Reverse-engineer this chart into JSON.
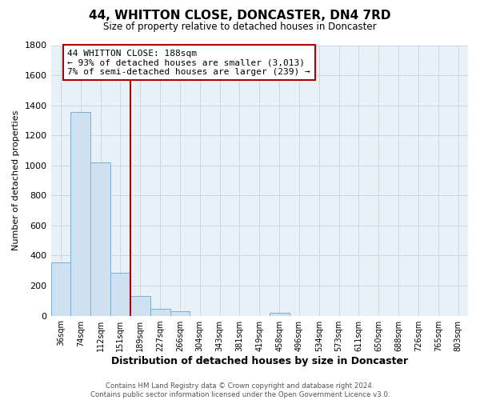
{
  "title": "44, WHITTON CLOSE, DONCASTER, DN4 7RD",
  "subtitle": "Size of property relative to detached houses in Doncaster",
  "xlabel": "Distribution of detached houses by size in Doncaster",
  "ylabel": "Number of detached properties",
  "bar_labels": [
    "36sqm",
    "74sqm",
    "112sqm",
    "151sqm",
    "189sqm",
    "227sqm",
    "266sqm",
    "304sqm",
    "343sqm",
    "381sqm",
    "419sqm",
    "458sqm",
    "496sqm",
    "534sqm",
    "573sqm",
    "611sqm",
    "650sqm",
    "688sqm",
    "726sqm",
    "765sqm",
    "803sqm"
  ],
  "bar_values": [
    355,
    1355,
    1020,
    285,
    130,
    45,
    32,
    0,
    0,
    0,
    0,
    18,
    0,
    0,
    0,
    0,
    0,
    0,
    0,
    0,
    0
  ],
  "bar_color": "#cfe0f0",
  "bar_edge_color": "#7bafd4",
  "property_line_color": "#aa0000",
  "annotation_line1": "44 WHITTON CLOSE: 188sqm",
  "annotation_line2": "← 93% of detached houses are smaller (3,013)",
  "annotation_line3": "7% of semi-detached houses are larger (239) →",
  "annotation_box_color": "#ffffff",
  "annotation_box_edge": "#aa0000",
  "ylim": [
    0,
    1800
  ],
  "yticks": [
    0,
    200,
    400,
    600,
    800,
    1000,
    1200,
    1400,
    1600,
    1800
  ],
  "footer_line1": "Contains HM Land Registry data © Crown copyright and database right 2024.",
  "footer_line2": "Contains public sector information licensed under the Open Government Licence v3.0.",
  "background_color": "#ffffff",
  "grid_color": "#c8d8e8"
}
